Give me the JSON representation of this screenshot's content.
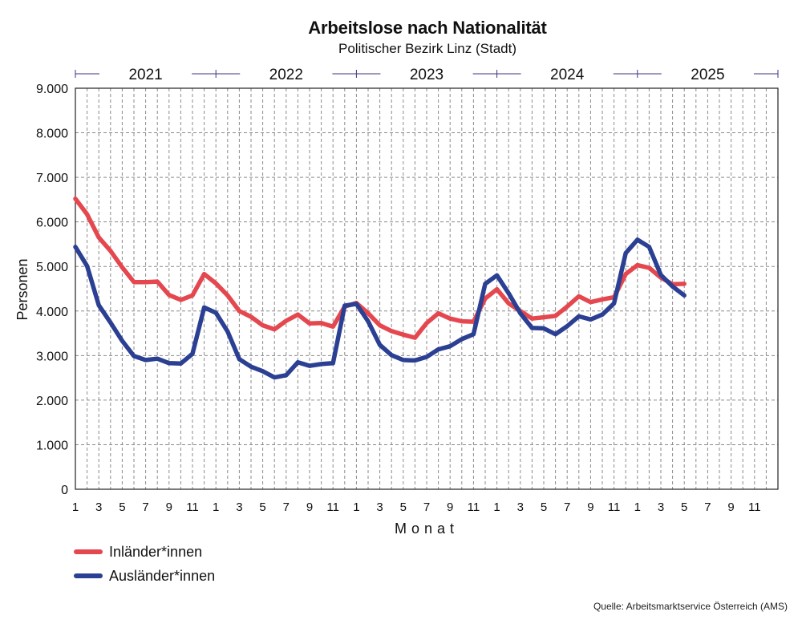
{
  "chart_data": {
    "type": "line",
    "title": "Arbeitslose nach Nationalität",
    "subtitle": "Politischer Bezirk Linz (Stadt)",
    "xlabel": "Monat",
    "ylabel": "Personen",
    "ylim": [
      0,
      9000
    ],
    "y_ticks": [
      "0",
      "1.000",
      "2.000",
      "3.000",
      "4.000",
      "5.000",
      "6.000",
      "7.000",
      "8.000",
      "9.000"
    ],
    "years": [
      "2021",
      "2022",
      "2023",
      "2024",
      "2025"
    ],
    "month_tick_labels": [
      "1",
      "3",
      "5",
      "7",
      "9",
      "11"
    ],
    "months_total": 60,
    "grid": true,
    "legend_position": "bottom-left",
    "series": [
      {
        "name": "Inländer*innen",
        "color": "#e5474f",
        "values": [
          6520,
          6170,
          5650,
          5350,
          4980,
          4650,
          4650,
          4660,
          4360,
          4250,
          4350,
          4830,
          4620,
          4350,
          4000,
          3870,
          3680,
          3590,
          3780,
          3920,
          3720,
          3730,
          3650,
          4100,
          4180,
          3950,
          3680,
          3550,
          3470,
          3400,
          3730,
          3950,
          3830,
          3770,
          3760,
          4280,
          4490,
          4170,
          4000,
          3830,
          3860,
          3890,
          4100,
          4330,
          4200,
          4260,
          4310,
          4830,
          5030,
          4970,
          4750,
          4600,
          4610
        ]
      },
      {
        "name": "Ausländer*innen",
        "color": "#2b3f93",
        "values": [
          5440,
          5010,
          4130,
          3740,
          3330,
          2990,
          2900,
          2930,
          2830,
          2820,
          3040,
          4080,
          3960,
          3540,
          2920,
          2750,
          2650,
          2510,
          2560,
          2850,
          2770,
          2810,
          2830,
          4120,
          4160,
          3770,
          3240,
          3010,
          2900,
          2890,
          2970,
          3140,
          3210,
          3370,
          3480,
          4610,
          4800,
          4400,
          3950,
          3620,
          3610,
          3480,
          3660,
          3880,
          3810,
          3920,
          4170,
          5300,
          5600,
          5440,
          4810,
          4550,
          4350
        ]
      }
    ]
  },
  "legend": {
    "inlaender": "Inländer*innen",
    "auslaender": "Ausländer*innen"
  },
  "source": "Quelle: Arbeitsmarktservice Österreich (AMS)"
}
